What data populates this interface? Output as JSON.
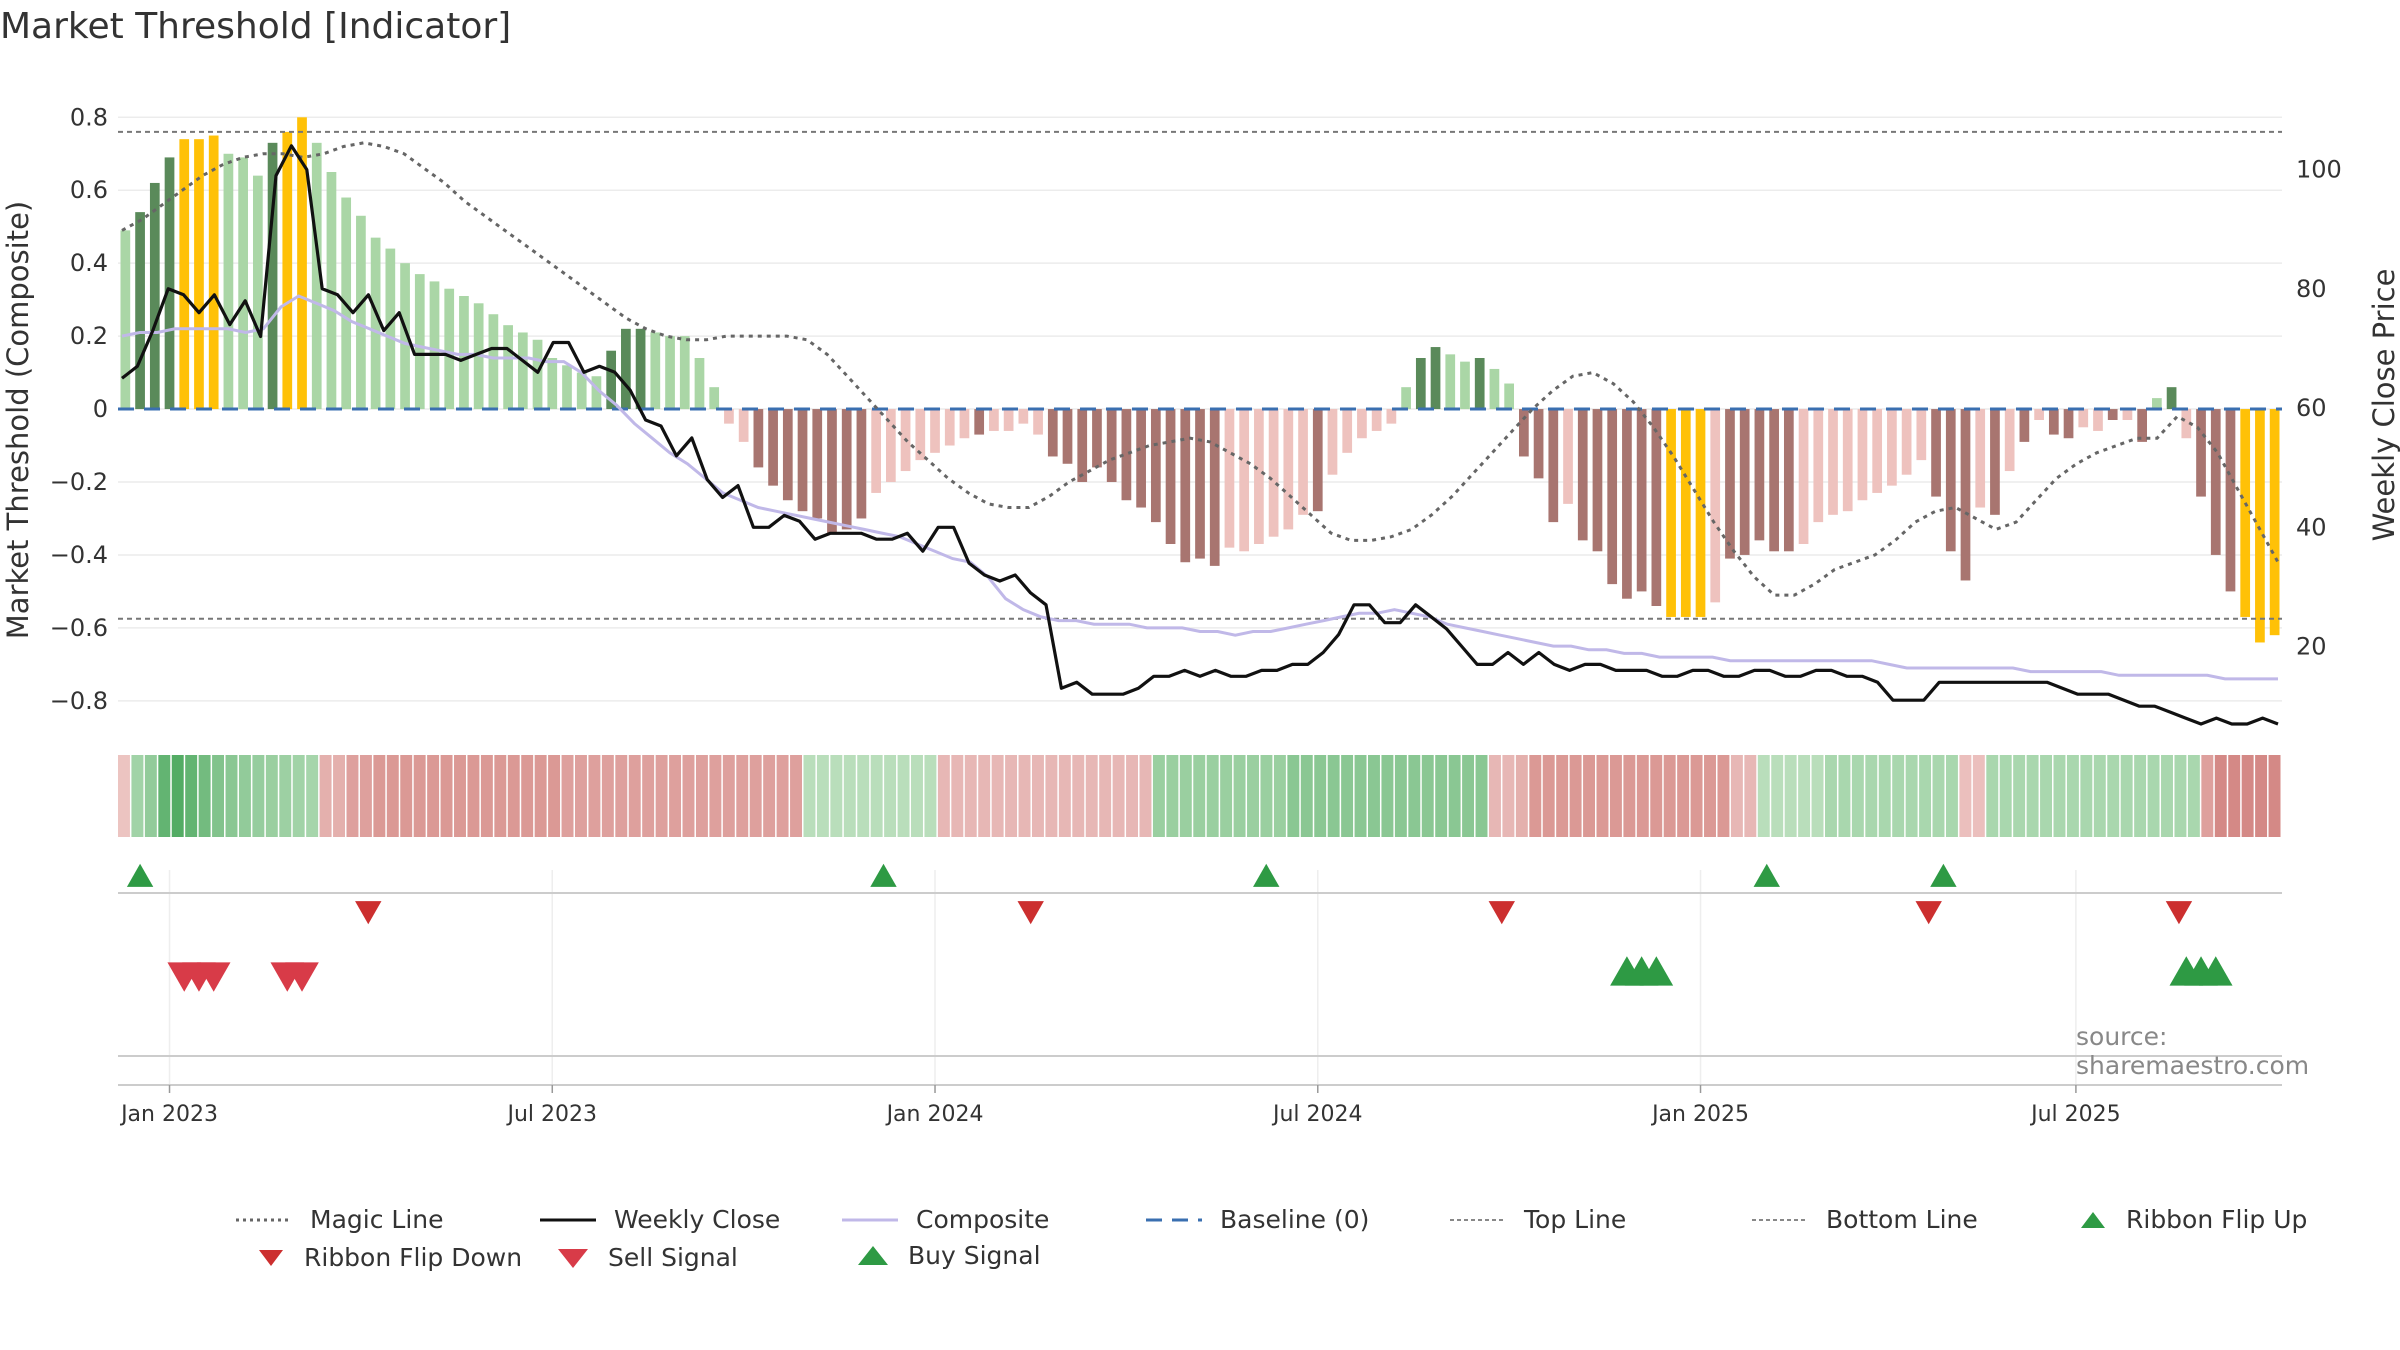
{
  "title": "Market Threshold [Indicator]",
  "source": "source: sharemaestro.com",
  "legend": {
    "magic_line": "Magic Line",
    "weekly_close": "Weekly Close",
    "composite": "Composite",
    "baseline": "Baseline (0)",
    "top_line": "Top Line",
    "bottom_line": "Bottom Line",
    "ribbon_flip_up": "Ribbon Flip Up",
    "ribbon_flip_down": "Ribbon Flip Down",
    "sell_signal": "Sell Signal",
    "buy_signal": "Buy Signal"
  },
  "colors": {
    "pos_strong": "#5a8a5a",
    "pos_light": "#aad6a6",
    "neg_strong": "#a87570",
    "neg_light": "#eec2be",
    "extreme": "#ffc107",
    "weekly_close": "#111111",
    "composite": "#c0b8e8",
    "magic": "#666666",
    "baseline": "#3a6fb0",
    "buy": "#2e9a44",
    "sell": "#d83b48",
    "flip_down": "#cc2f2f"
  },
  "chart_data": {
    "type": "bar",
    "title": "Market Threshold [Indicator]",
    "ylabel": "Market Threshold (Composite)",
    "y2label": "Weekly Close Price",
    "ylim": [
      -0.88,
      0.82
    ],
    "y2lim": [
      6,
      110
    ],
    "yticks": [
      0.8,
      0.6,
      0.4,
      0.2,
      0,
      -0.2,
      -0.4,
      -0.6,
      -0.8
    ],
    "ytick_labels": [
      "0.8",
      "0.6",
      "0.4",
      "0.2",
      "0",
      "−0.2",
      "−0.4",
      "−0.6",
      "−0.8"
    ],
    "y2ticks": [
      100,
      80,
      60,
      40,
      20
    ],
    "xticks": [
      {
        "week": 3,
        "label": "Jan 2023"
      },
      {
        "week": 29,
        "label": "Jul 2023"
      },
      {
        "week": 55,
        "label": "Jan 2024"
      },
      {
        "week": 81,
        "label": "Jul 2024"
      },
      {
        "week": 107,
        "label": "Jan 2025"
      },
      {
        "week": 132.5,
        "label": "Jul 2025"
      }
    ],
    "top_line": 0.76,
    "bottom_line": -0.575,
    "composite_bars": [
      0.49,
      0.54,
      0.62,
      0.69,
      0.74,
      0.74,
      0.75,
      0.7,
      0.69,
      0.64,
      0.73,
      0.76,
      0.8,
      0.73,
      0.65,
      0.58,
      0.53,
      0.47,
      0.44,
      0.4,
      0.37,
      0.35,
      0.33,
      0.31,
      0.29,
      0.26,
      0.23,
      0.21,
      0.19,
      0.14,
      0.12,
      0.1,
      0.09,
      0.16,
      0.22,
      0.22,
      0.21,
      0.2,
      0.2,
      0.14,
      0.06,
      -0.04,
      -0.09,
      -0.16,
      -0.21,
      -0.25,
      -0.28,
      -0.3,
      -0.34,
      -0.33,
      -0.3,
      -0.23,
      -0.2,
      -0.17,
      -0.14,
      -0.12,
      -0.1,
      -0.08,
      -0.07,
      -0.06,
      -0.06,
      -0.04,
      -0.07,
      -0.13,
      -0.15,
      -0.2,
      -0.16,
      -0.2,
      -0.25,
      -0.27,
      -0.31,
      -0.37,
      -0.42,
      -0.41,
      -0.43,
      -0.38,
      -0.39,
      -0.37,
      -0.35,
      -0.33,
      -0.29,
      -0.28,
      -0.18,
      -0.12,
      -0.08,
      -0.06,
      -0.04,
      0.06,
      0.14,
      0.17,
      0.15,
      0.13,
      0.14,
      0.11,
      0.07,
      -0.13,
      -0.19,
      -0.31,
      -0.26,
      -0.36,
      -0.39,
      -0.48,
      -0.52,
      -0.5,
      -0.54,
      -0.57,
      -0.57,
      -0.57,
      -0.53,
      -0.41,
      -0.4,
      -0.36,
      -0.39,
      -0.39,
      -0.37,
      -0.31,
      -0.29,
      -0.28,
      -0.25,
      -0.23,
      -0.21,
      -0.18,
      -0.14,
      -0.24,
      -0.39,
      -0.47,
      -0.27,
      -0.29,
      -0.17,
      -0.09,
      -0.03,
      -0.07,
      -0.08,
      -0.05,
      -0.06,
      -0.03,
      -0.03,
      -0.09,
      0.03,
      0.06,
      -0.08,
      -0.24,
      -0.4,
      -0.5,
      -0.57,
      -0.64,
      -0.62
    ],
    "bar_class": [
      "pl",
      "ps",
      "ps",
      "ps",
      "x",
      "x",
      "x",
      "pl",
      "pl",
      "pl",
      "ps",
      "x",
      "x",
      "pl",
      "pl",
      "pl",
      "pl",
      "pl",
      "pl",
      "pl",
      "pl",
      "pl",
      "pl",
      "pl",
      "pl",
      "pl",
      "pl",
      "pl",
      "pl",
      "pl",
      "pl",
      "pl",
      "pl",
      "ps",
      "ps",
      "ps",
      "pl",
      "pl",
      "pl",
      "pl",
      "pl",
      "nl",
      "nl",
      "ns",
      "ns",
      "ns",
      "ns",
      "ns",
      "ns",
      "ns",
      "ns",
      "nl",
      "nl",
      "nl",
      "nl",
      "nl",
      "nl",
      "nl",
      "ns",
      "nl",
      "nl",
      "nl",
      "nl",
      "ns",
      "ns",
      "ns",
      "ns",
      "ns",
      "ns",
      "ns",
      "ns",
      "ns",
      "ns",
      "ns",
      "ns",
      "nl",
      "nl",
      "nl",
      "nl",
      "nl",
      "nl",
      "ns",
      "nl",
      "nl",
      "nl",
      "nl",
      "nl",
      "pl",
      "ps",
      "ps",
      "pl",
      "pl",
      "ps",
      "pl",
      "pl",
      "ns",
      "ns",
      "ns",
      "nl",
      "ns",
      "ns",
      "ns",
      "ns",
      "ns",
      "ns",
      "x",
      "x",
      "x",
      "nl",
      "ns",
      "ns",
      "ns",
      "ns",
      "ns",
      "nl",
      "nl",
      "nl",
      "nl",
      "nl",
      "nl",
      "nl",
      "nl",
      "nl",
      "ns",
      "ns",
      "ns",
      "nl",
      "ns",
      "nl",
      "ns",
      "nl",
      "ns",
      "ns",
      "nl",
      "nl",
      "ns",
      "nl",
      "ns",
      "pl",
      "ps",
      "nl",
      "ns",
      "ns",
      "ns",
      "x",
      "x",
      "x"
    ],
    "weekly_close": [
      65,
      67,
      73,
      80,
      79,
      76,
      79,
      74,
      78,
      72,
      99,
      104,
      100,
      80,
      79,
      76,
      79,
      73,
      76,
      69,
      69,
      69,
      68,
      69,
      70,
      70,
      68,
      66,
      71,
      71,
      66,
      67,
      66,
      63,
      58,
      57,
      52,
      55,
      48,
      45,
      47,
      40,
      40,
      42,
      41,
      38,
      39,
      39,
      39,
      38,
      38,
      39,
      36,
      40,
      40,
      34,
      32,
      31,
      32,
      29,
      27,
      13,
      14,
      12,
      12,
      12,
      13,
      15,
      15,
      16,
      15,
      16,
      15,
      15,
      16,
      16,
      17,
      17,
      19,
      22,
      27,
      27,
      24,
      24,
      27,
      25,
      23,
      20,
      17,
      17,
      19,
      17,
      19,
      17,
      16,
      17,
      17,
      16,
      16,
      16,
      15,
      15,
      16,
      16,
      15,
      15,
      16,
      16,
      15,
      15,
      16,
      16,
      15,
      15,
      14,
      11,
      11,
      11,
      14,
      14,
      14,
      14,
      14,
      14,
      14,
      14,
      13,
      12,
      12,
      12,
      11,
      10,
      10,
      9,
      8,
      7,
      8,
      7,
      7,
      8,
      7
    ],
    "composite_line": [
      0.2,
      0.21,
      0.21,
      0.22,
      0.22,
      0.22,
      0.22,
      0.21,
      0.22,
      0.28,
      0.31,
      0.29,
      0.27,
      0.24,
      0.22,
      0.2,
      0.18,
      0.17,
      0.16,
      0.15,
      0.15,
      0.14,
      0.14,
      0.14,
      0.13,
      0.13,
      0.1,
      0.05,
      0.01,
      -0.04,
      -0.08,
      -0.12,
      -0.15,
      -0.19,
      -0.23,
      -0.25,
      -0.27,
      -0.28,
      -0.29,
      -0.3,
      -0.31,
      -0.32,
      -0.33,
      -0.34,
      -0.35,
      -0.37,
      -0.39,
      -0.41,
      -0.42,
      -0.46,
      -0.52,
      -0.55,
      -0.57,
      -0.58,
      -0.58,
      -0.59,
      -0.59,
      -0.59,
      -0.6,
      -0.6,
      -0.6,
      -0.61,
      -0.61,
      -0.62,
      -0.61,
      -0.61,
      -0.6,
      -0.59,
      -0.58,
      -0.57,
      -0.56,
      -0.56,
      -0.55,
      -0.56,
      -0.57,
      -0.59,
      -0.6,
      -0.61,
      -0.62,
      -0.63,
      -0.64,
      -0.65,
      -0.65,
      -0.66,
      -0.66,
      -0.67,
      -0.67,
      -0.68,
      -0.68,
      -0.68,
      -0.68,
      -0.69,
      -0.69,
      -0.69,
      -0.69,
      -0.69,
      -0.69,
      -0.69,
      -0.69,
      -0.69,
      -0.7,
      -0.71,
      -0.71,
      -0.71,
      -0.71,
      -0.71,
      -0.71,
      -0.71,
      -0.72,
      -0.72,
      -0.72,
      -0.72,
      -0.72,
      -0.73,
      -0.73,
      -0.73,
      -0.73,
      -0.73,
      -0.73,
      -0.74,
      -0.74,
      -0.74,
      -0.74
    ],
    "magic_line": [
      0.49,
      0.52,
      0.56,
      0.6,
      0.64,
      0.67,
      0.69,
      0.7,
      0.7,
      0.69,
      0.7,
      0.72,
      0.73,
      0.72,
      0.7,
      0.66,
      0.62,
      0.57,
      0.53,
      0.49,
      0.45,
      0.41,
      0.37,
      0.33,
      0.29,
      0.25,
      0.22,
      0.2,
      0.19,
      0.19,
      0.2,
      0.2,
      0.2,
      0.2,
      0.19,
      0.15,
      0.09,
      0.03,
      -0.03,
      -0.09,
      -0.14,
      -0.19,
      -0.23,
      -0.26,
      -0.27,
      -0.27,
      -0.24,
      -0.2,
      -0.17,
      -0.14,
      -0.12,
      -0.1,
      -0.09,
      -0.08,
      -0.09,
      -0.12,
      -0.15,
      -0.19,
      -0.24,
      -0.29,
      -0.34,
      -0.36,
      -0.36,
      -0.35,
      -0.33,
      -0.29,
      -0.24,
      -0.18,
      -0.12,
      -0.06,
      0.0,
      0.05,
      0.09,
      0.1,
      0.07,
      0.02,
      -0.05,
      -0.13,
      -0.22,
      -0.31,
      -0.39,
      -0.46,
      -0.51,
      -0.51,
      -0.48,
      -0.44,
      -0.42,
      -0.4,
      -0.36,
      -0.31,
      -0.28,
      -0.27,
      -0.3,
      -0.33,
      -0.31,
      -0.25,
      -0.19,
      -0.15,
      -0.12,
      -0.1,
      -0.08,
      -0.08,
      -0.02,
      -0.05,
      -0.12,
      -0.22,
      -0.32,
      -0.42
    ],
    "ribbon": [
      -0.12,
      0.35,
      0.45,
      0.75,
      0.85,
      0.75,
      0.65,
      0.55,
      0.5,
      0.45,
      0.42,
      0.4,
      0.38,
      0.35,
      0.32,
      -0.25,
      -0.25,
      -0.35,
      -0.35,
      -0.4,
      -0.4,
      -0.4,
      -0.4,
      -0.4,
      -0.4,
      -0.4,
      -0.4,
      -0.4,
      -0.4,
      -0.4,
      -0.4,
      -0.4,
      -0.4,
      -0.35,
      -0.35,
      -0.35,
      -0.35,
      -0.35,
      -0.35,
      -0.35,
      -0.35,
      -0.35,
      -0.35,
      -0.35,
      -0.35,
      -0.35,
      -0.35,
      -0.35,
      -0.35,
      -0.35,
      -0.35,
      0.2,
      0.2,
      0.2,
      0.2,
      0.2,
      0.2,
      0.2,
      0.2,
      0.2,
      0.2,
      -0.2,
      -0.2,
      -0.2,
      -0.2,
      -0.2,
      -0.2,
      -0.2,
      -0.2,
      -0.2,
      -0.2,
      -0.2,
      -0.2,
      -0.2,
      -0.2,
      -0.2,
      -0.2,
      0.4,
      0.4,
      0.4,
      0.4,
      0.4,
      0.4,
      0.4,
      0.4,
      0.4,
      0.4,
      0.5,
      0.5,
      0.5,
      0.5,
      0.5,
      0.5,
      0.5,
      0.5,
      0.5,
      0.5,
      0.5,
      0.5,
      0.5,
      0.5,
      0.5,
      -0.2,
      -0.2,
      -0.25,
      -0.4,
      -0.4,
      -0.4,
      -0.4,
      -0.4,
      -0.4,
      -0.4,
      -0.4,
      -0.4,
      -0.4,
      -0.4,
      -0.4,
      -0.4,
      -0.4,
      -0.4,
      -0.2,
      -0.2,
      0.2,
      0.2,
      0.2,
      0.2,
      0.2,
      0.3,
      0.3,
      0.3,
      0.3,
      0.3,
      0.3,
      0.3,
      0.3,
      0.3,
      0.3,
      -0.15,
      -0.15,
      0.3,
      0.3,
      0.3,
      0.3,
      0.3,
      0.3,
      0.3,
      0.3,
      0.3,
      0.3,
      0.3,
      0.3,
      0.3,
      0.3,
      0.3,
      0.3,
      -0.35,
      -0.5,
      -0.5,
      -0.5,
      -0.5,
      -0.5
    ],
    "ribbon_flip_up": [
      1,
      51.5,
      77.5,
      111.5,
      123.5
    ],
    "ribbon_flip_down": [
      16.5,
      61.5,
      93.5,
      122.5,
      139.5
    ],
    "sell_signal": [
      4,
      5,
      6,
      11,
      12
    ],
    "buy_signal": [
      102,
      103,
      104,
      140,
      141,
      142
    ]
  }
}
